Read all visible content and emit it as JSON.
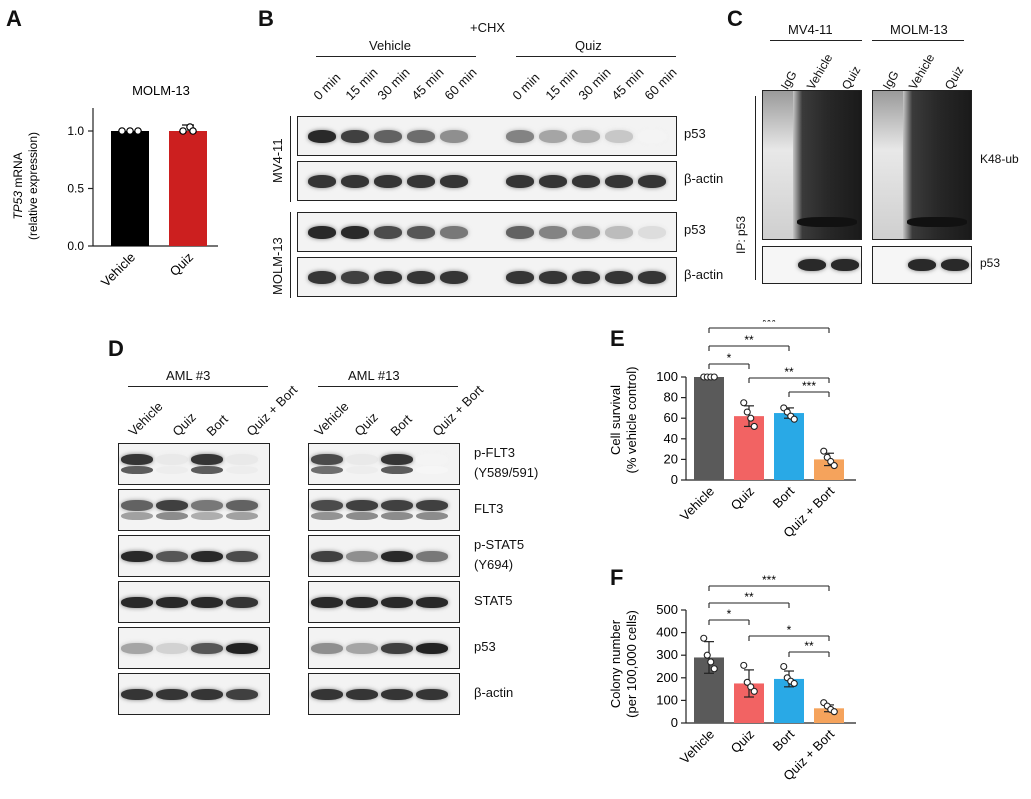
{
  "panels": {
    "A": "A",
    "B": "B",
    "C": "C",
    "D": "D",
    "E": "E",
    "F": "F"
  },
  "panelA": {
    "title": "MOLM-13",
    "ylabel_gene": "TP53",
    "ylabel_rest": " mRNA",
    "ylabel_sub": "(relative expression)",
    "colors": {
      "Vehicle": "#000000",
      "Quiz": "#cc1f1f"
    },
    "chart_data": {
      "type": "bar",
      "title": "MOLM-13",
      "categories": [
        "Vehicle",
        "Quiz"
      ],
      "values": [
        1.0,
        1.0
      ],
      "ylabel": "TP53 mRNA (relative expression)",
      "yticks": [
        "0.0",
        "0.5",
        "1.0"
      ],
      "ylim": [
        0,
        1.15
      ]
    }
  },
  "panelB": {
    "cond": "+CHX",
    "groups": [
      "Vehicle",
      "Quiz"
    ],
    "times": [
      "0 min",
      "15 min",
      "30 min",
      "45 min",
      "60 min"
    ],
    "cells": [
      "MV4-11",
      "MOLM-13"
    ],
    "proteins": [
      "p53",
      "β-actin"
    ]
  },
  "panelC": {
    "cells": [
      "MV4-11",
      "MOLM-13"
    ],
    "lanes": [
      "IgG",
      "Vehicle",
      "Quiz"
    ],
    "ip": "IP: p53",
    "k48": "K48-ub",
    "p53": "p53"
  },
  "panelD": {
    "groups": [
      "AML #3",
      "AML #13"
    ],
    "lanes": [
      "Vehicle",
      "Quiz",
      "Bort",
      "Quiz + Bort"
    ],
    "proteins": [
      "p-FLT3",
      "(Y589/591)",
      "FLT3",
      "p-STAT5",
      "(Y694)",
      "STAT5",
      "p53",
      "β-actin"
    ]
  },
  "panelE": {
    "colors": [
      "#5a5a5a",
      "#f26363",
      "#29a9e6",
      "#f5a35c"
    ],
    "chart_data": {
      "type": "bar",
      "categories": [
        "Vehicle",
        "Quiz",
        "Bort",
        "Quiz + Bort"
      ],
      "values": [
        100,
        62,
        65,
        20
      ],
      "errors": [
        0,
        10,
        5,
        6
      ],
      "points": [
        [
          100,
          100,
          100,
          100
        ],
        [
          75,
          66,
          60,
          52
        ],
        [
          70,
          66,
          62,
          59
        ],
        [
          28,
          22,
          18,
          14
        ]
      ],
      "ylabel": "Cell survival",
      "ylabel2": "(% vehicle control)",
      "yticks": [
        "0",
        "20",
        "40",
        "60",
        "80",
        "100"
      ],
      "ylim": [
        0,
        100
      ],
      "significance": [
        "*",
        "**",
        "***",
        "**",
        "***"
      ]
    }
  },
  "panelF": {
    "colors": [
      "#5a5a5a",
      "#f26363",
      "#29a9e6",
      "#f5a35c"
    ],
    "chart_data": {
      "type": "bar",
      "categories": [
        "Vehicle",
        "Quiz",
        "Bort",
        "Quiz + Bort"
      ],
      "values": [
        290,
        175,
        195,
        65
      ],
      "errors": [
        70,
        60,
        35,
        15
      ],
      "points": [
        [
          375,
          300,
          270,
          240
        ],
        [
          255,
          180,
          160,
          140
        ],
        [
          250,
          200,
          185,
          175
        ],
        [
          90,
          75,
          60,
          50
        ]
      ],
      "ylabel": "Colony number",
      "ylabel2": "(per 100,000 cells)",
      "yticks": [
        "0",
        "100",
        "200",
        "300",
        "400",
        "500"
      ],
      "ylim": [
        0,
        500
      ],
      "significance": [
        "*",
        "**",
        "***",
        "*",
        "**"
      ]
    }
  }
}
